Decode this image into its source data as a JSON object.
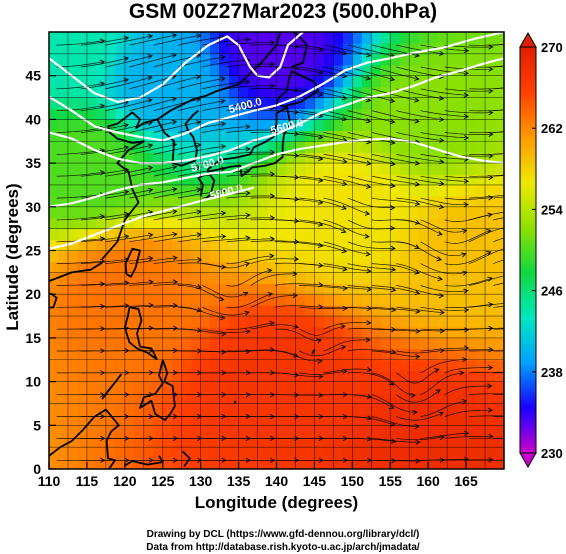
{
  "title": "GSM 00Z27Mar2023 (500.0hPa)",
  "xlabel": "Longitude (degrees)",
  "ylabel": "Latitude  (degrees)",
  "x_ticks": [
    "110",
    "115",
    "120",
    "125",
    "130",
    "135",
    "140",
    "145",
    "150",
    "155",
    "160",
    "165"
  ],
  "y_ticks": [
    "0",
    "5",
    "10",
    "15",
    "20",
    "25",
    "30",
    "35",
    "40",
    "45"
  ],
  "colorbar_ticks": [
    "270",
    "262",
    "254",
    "246",
    "238",
    "230"
  ],
  "contour_labels": [
    "5400.0",
    "5600.0",
    "5700.0",
    "5800.0"
  ],
  "credits": [
    "Drawing by DCL (https://www.gfd-dennou.org/library/dcl/)",
    "Data from http://database.rish.kyoto-u.ac.jp/arch/jmadata/"
  ],
  "chart_data": {
    "type": "heatmap",
    "title": "GSM 00Z27Mar2023 (500.0hPa)",
    "xlabel": "Longitude (degrees)",
    "ylabel": "Latitude  (degrees)",
    "xlim": [
      110,
      170
    ],
    "ylim": [
      0,
      50
    ],
    "colorbar": {
      "min": 230,
      "max": 270,
      "ticks": [
        230,
        238,
        246,
        254,
        262,
        270
      ]
    },
    "temperature_field_K": [
      {
        "lat": 48,
        "lon": 112,
        "value": 244
      },
      {
        "lat": 48,
        "lon": 140,
        "value": 233
      },
      {
        "lat": 44,
        "lon": 125,
        "value": 240
      },
      {
        "lat": 40,
        "lon": 160,
        "value": 252
      },
      {
        "lat": 35,
        "lon": 115,
        "value": 250
      },
      {
        "lat": 30,
        "lon": 150,
        "value": 257
      },
      {
        "lat": 25,
        "lon": 165,
        "value": 259
      },
      {
        "lat": 20,
        "lon": 120,
        "value": 263
      },
      {
        "lat": 10,
        "lon": 140,
        "value": 267
      },
      {
        "lat": 2,
        "lon": 160,
        "value": 268
      }
    ],
    "height_contours_m": [
      5400,
      5600,
      5700,
      5800
    ],
    "overlay": "streamlines",
    "grid": true
  },
  "colors": {
    "colorbar_stops": [
      "#cc00cc",
      "#1800ff",
      "#00a0ff",
      "#00e8c0",
      "#10d840",
      "#90e000",
      "#f0e800",
      "#ff9a00",
      "#ff4000",
      "#e02000"
    ]
  }
}
